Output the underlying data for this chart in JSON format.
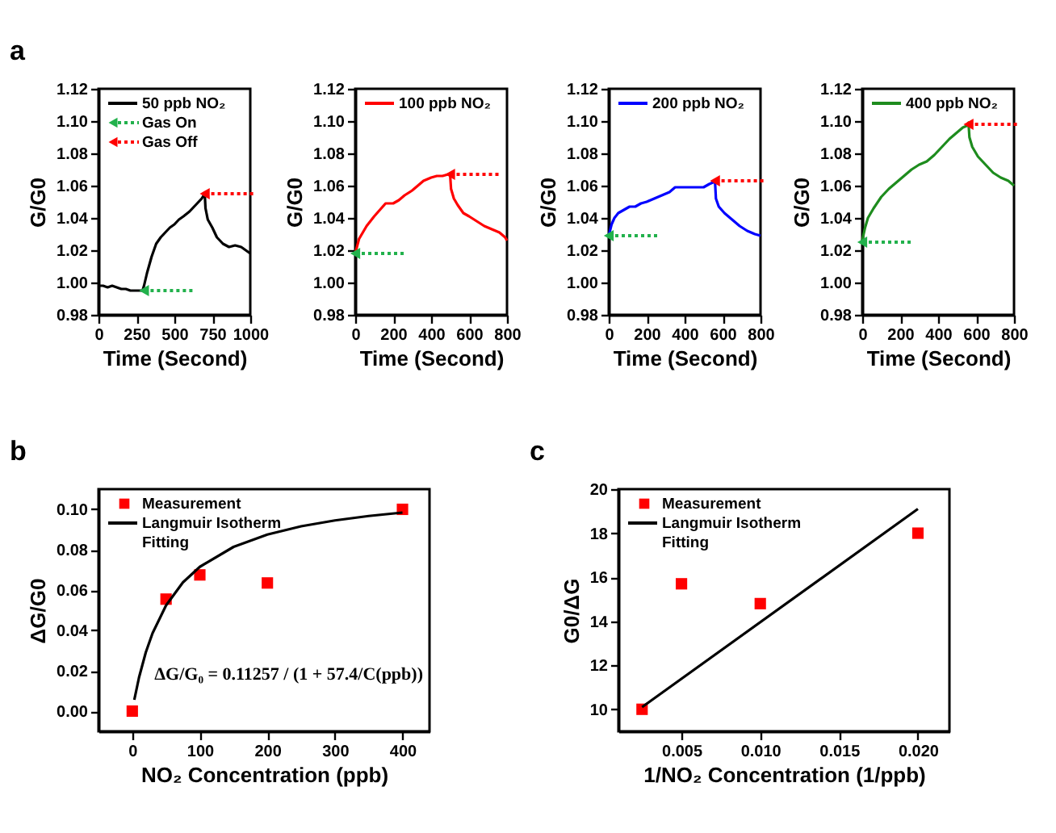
{
  "chart_data": [
    {
      "type": "line",
      "ylabel": "G/G0",
      "xlabel": "Time (Second)",
      "xlim": [
        0,
        1000
      ],
      "xticks": [
        0,
        250,
        500,
        750,
        1000
      ],
      "ylim": [
        0.98,
        1.12
      ],
      "yticks": [
        0.98,
        {
          "value": 1.0,
          "label": "1.00"
        },
        1.02,
        1.04,
        1.06,
        1.08,
        {
          "value": 1.1,
          "label": "1.10"
        },
        1.12
      ],
      "grid": false,
      "legend": "top left",
      "annotations": [
        "a"
      ],
      "series": [
        {
          "name": "50 ppb NO₂",
          "color": "#000000",
          "x": [
            0,
            30,
            60,
            90,
            120,
            150,
            180,
            210,
            240,
            270,
            290,
            300,
            320,
            350,
            380,
            410,
            440,
            470,
            500,
            530,
            560,
            600,
            640,
            680,
            700,
            705,
            720,
            750,
            780,
            820,
            860,
            900,
            940,
            970,
            1000
          ],
          "values": [
            0.998,
            0.998,
            0.997,
            0.998,
            0.997,
            0.996,
            0.996,
            0.995,
            0.995,
            0.995,
            0.995,
            0.998,
            1.006,
            1.016,
            1.024,
            1.028,
            1.031,
            1.034,
            1.036,
            1.039,
            1.041,
            1.044,
            1.048,
            1.052,
            1.055,
            1.046,
            1.039,
            1.034,
            1.028,
            1.024,
            1.022,
            1.023,
            1.022,
            1.02,
            1.018
          ]
        },
        {
          "type": "scatter",
          "name": "Gas On",
          "color": "#22b14c",
          "marker": "triangle",
          "line_style": "dotted",
          "x": [
            300
          ],
          "values": [
            0.995
          ]
        },
        {
          "type": "scatter",
          "name": "Gas Off",
          "color": "#ff0000",
          "marker": "triangle",
          "line_style": "dotted",
          "x": [
            700
          ],
          "values": [
            1.055
          ]
        }
      ]
    },
    {
      "type": "line",
      "ylabel": "G/G0",
      "xlabel": "Time (Second)",
      "xlim": [
        0,
        800
      ],
      "xticks": [
        0,
        200,
        400,
        600,
        800
      ],
      "ylim": [
        0.98,
        1.12
      ],
      "yticks": [
        0.98,
        {
          "value": 1.0,
          "label": "1.00"
        },
        1.02,
        1.04,
        1.06,
        1.08,
        {
          "value": 1.1,
          "label": "1.10"
        },
        1.12
      ],
      "grid": false,
      "legend": "top left",
      "series": [
        {
          "name": "100 ppb NO₂",
          "color": "#ff0000",
          "x": [
            0,
            20,
            40,
            60,
            80,
            100,
            130,
            160,
            200,
            230,
            260,
            300,
            330,
            360,
            400,
            430,
            460,
            490,
            500,
            505,
            520,
            540,
            570,
            600,
            640,
            680,
            720,
            760,
            790,
            800
          ],
          "values": [
            1.018,
            1.027,
            1.031,
            1.035,
            1.038,
            1.041,
            1.045,
            1.049,
            1.049,
            1.051,
            1.054,
            1.057,
            1.06,
            1.063,
            1.065,
            1.066,
            1.066,
            1.067,
            1.067,
            1.058,
            1.052,
            1.048,
            1.043,
            1.041,
            1.038,
            1.035,
            1.033,
            1.031,
            1.028,
            1.026
          ]
        },
        {
          "type": "scatter",
          "color": "#22b14c",
          "marker": "triangle",
          "line_style": "dotted",
          "x": [
            0
          ],
          "values": [
            1.018
          ]
        },
        {
          "type": "scatter",
          "color": "#ff0000",
          "marker": "triangle",
          "line_style": "dotted",
          "x": [
            500
          ],
          "values": [
            1.067
          ]
        }
      ]
    },
    {
      "type": "line",
      "ylabel": "G/G0",
      "xlabel": "Time (Second)",
      "xlim": [
        0,
        800
      ],
      "xticks": [
        0,
        200,
        400,
        600,
        800
      ],
      "ylim": [
        0.98,
        1.12
      ],
      "yticks": [
        0.98,
        {
          "value": 1.0,
          "label": "1.00"
        },
        1.02,
        1.04,
        1.06,
        1.08,
        {
          "value": 1.1,
          "label": "1.10"
        },
        1.12
      ],
      "grid": false,
      "legend": "top left",
      "series": [
        {
          "name": "200 ppb NO₂",
          "color": "#0000ff",
          "x": [
            0,
            15,
            30,
            50,
            80,
            110,
            140,
            170,
            200,
            240,
            280,
            320,
            350,
            380,
            420,
            460,
            500,
            530,
            550,
            560,
            565,
            580,
            610,
            650,
            690,
            730,
            770,
            800
          ],
          "values": [
            1.029,
            1.036,
            1.04,
            1.043,
            1.045,
            1.047,
            1.047,
            1.049,
            1.05,
            1.052,
            1.054,
            1.056,
            1.059,
            1.059,
            1.059,
            1.059,
            1.059,
            1.061,
            1.062,
            1.063,
            1.052,
            1.047,
            1.043,
            1.039,
            1.035,
            1.032,
            1.03,
            1.029
          ]
        },
        {
          "type": "scatter",
          "color": "#22b14c",
          "marker": "triangle",
          "line_style": "dotted",
          "x": [
            0
          ],
          "values": [
            1.029
          ]
        },
        {
          "type": "scatter",
          "color": "#ff0000",
          "marker": "triangle",
          "line_style": "dotted",
          "x": [
            560
          ],
          "values": [
            1.063
          ]
        }
      ]
    },
    {
      "type": "line",
      "ylabel": "G/G0",
      "xlabel": "Time (Second)",
      "xlim": [
        0,
        800
      ],
      "xticks": [
        0,
        200,
        400,
        600,
        800
      ],
      "ylim": [
        0.98,
        1.12
      ],
      "yticks": [
        0.98,
        {
          "value": 1.0,
          "label": "1.00"
        },
        1.02,
        1.04,
        1.06,
        1.08,
        {
          "value": 1.1,
          "label": "1.10"
        },
        1.12
      ],
      "grid": false,
      "legend": "top left",
      "series": [
        {
          "name": "400 ppb NO₂",
          "color": "#1e8c1e",
          "x": [
            0,
            15,
            30,
            60,
            100,
            140,
            180,
            220,
            260,
            300,
            340,
            380,
            420,
            460,
            500,
            530,
            550,
            560,
            565,
            580,
            610,
            650,
            690,
            730,
            770,
            800
          ],
          "values": [
            1.026,
            1.034,
            1.04,
            1.046,
            1.053,
            1.058,
            1.062,
            1.066,
            1.07,
            1.073,
            1.075,
            1.079,
            1.084,
            1.089,
            1.093,
            1.096,
            1.097,
            1.099,
            1.09,
            1.084,
            1.078,
            1.073,
            1.068,
            1.065,
            1.063,
            1.06
          ]
        },
        {
          "type": "scatter",
          "color": "#22b14c",
          "marker": "triangle",
          "line_style": "dotted",
          "x": [
            0
          ],
          "values": [
            1.025
          ]
        },
        {
          "type": "scatter",
          "color": "#ff0000",
          "marker": "triangle",
          "line_style": "dotted",
          "x": [
            560
          ],
          "values": [
            1.098
          ]
        }
      ]
    },
    {
      "type": "scatter",
      "ylabel": "ΔG/G0",
      "xlabel": "NO₂ Concentration (ppb)",
      "xlim": [
        -50,
        440
      ],
      "xticks": [
        0,
        100,
        200,
        300,
        400
      ],
      "ylim": [
        -0.01,
        0.11
      ],
      "yticks": [
        {
          "value": 0,
          "label": "0.00"
        },
        0.02,
        0.04,
        0.06,
        0.08,
        {
          "value": 0.1,
          "label": "0.10"
        }
      ],
      "grid": false,
      "legend": "top left",
      "annotations": [
        "b",
        "ΔG/G₀ = 0.11257 / (1 + 57.4/C(ppb))"
      ],
      "series": [
        {
          "name": "Measurement",
          "color": "#ff0000",
          "marker": "square",
          "x": [
            0,
            50,
            100,
            200,
            400
          ],
          "values": [
            0.0,
            0.0555,
            0.0675,
            0.0635,
            0.1
          ]
        },
        {
          "type": "line",
          "name": "Langmuir Isotherm Fitting",
          "color": "#000000",
          "x": [
            3,
            10,
            20,
            30,
            50,
            75,
            100,
            150,
            200,
            250,
            300,
            350,
            400
          ],
          "values": [
            0.0056,
            0.0167,
            0.0291,
            0.0386,
            0.0524,
            0.0638,
            0.0715,
            0.0814,
            0.0875,
            0.0916,
            0.0945,
            0.0967,
            0.0984
          ]
        }
      ]
    },
    {
      "type": "scatter",
      "ylabel": "G0/ΔG",
      "xlabel": "1/NO₂ Concentration (1/ppb)",
      "xlim": [
        0.001,
        0.022
      ],
      "xticks": [
        0.005,
        {
          "value": 0.01,
          "label": "0.010"
        },
        0.015,
        {
          "value": 0.02,
          "label": "0.020"
        }
      ],
      "ylim": [
        9,
        20
      ],
      "yticks": [
        10,
        12,
        14,
        16,
        18,
        20
      ],
      "grid": false,
      "legend": "top left",
      "annotations": [
        "c"
      ],
      "series": [
        {
          "name": "Measurement",
          "color": "#ff0000",
          "marker": "square",
          "x": [
            0.0025,
            0.005,
            0.01,
            0.02
          ],
          "values": [
            10.0,
            15.7,
            14.8,
            18.0
          ]
        },
        {
          "type": "line",
          "name": "Langmuir Isotherm Fitting",
          "color": "#000000",
          "x": [
            0.0025,
            0.02
          ],
          "values": [
            10.1,
            19.1
          ]
        }
      ]
    }
  ]
}
